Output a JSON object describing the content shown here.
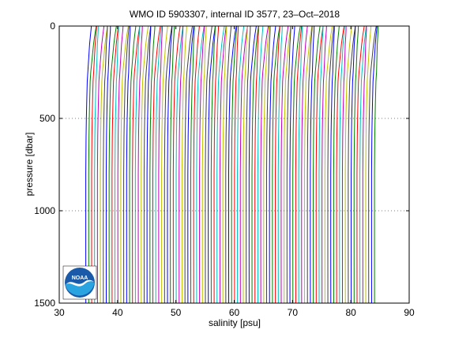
{
  "chart_data": {
    "type": "line",
    "title": "WMO ID 5903307, internal ID 3577, 23–Oct–2018",
    "xlabel": "salinity [psu]",
    "ylabel": "pressure [dbar]",
    "xlim": [
      30,
      90
    ],
    "ylim": [
      1500,
      0
    ],
    "y_inverted": true,
    "xticks": [
      "30",
      "40",
      "50",
      "60",
      "70",
      "80",
      "90"
    ],
    "yticks": [
      "0",
      "500",
      "1000",
      "1500"
    ],
    "ygrid_at": [
      500,
      1000
    ],
    "grid_style": "dotted",
    "profile_offset_step": 0.5,
    "profile_count": 100,
    "first_profile_offset": 0,
    "profile_shape": {
      "pressure": [
        0,
        20,
        50,
        100,
        150,
        200,
        250,
        300,
        400,
        500,
        600,
        800,
        1000,
        1200,
        1500
      ],
      "salinity": [
        35.5,
        35.45,
        35.35,
        35.2,
        35.1,
        35.0,
        34.9,
        34.8,
        34.72,
        34.65,
        34.6,
        34.55,
        34.55,
        34.55,
        34.56
      ]
    },
    "series_colors": [
      "#0000ff",
      "#008000",
      "#ff0000",
      "#00bfbf",
      "#bf00bf",
      "#bfbf00",
      "#404040"
    ]
  },
  "logo": {
    "text": "NOAA",
    "colors": {
      "sky": "#1a5aa8",
      "water": "#29a4e0",
      "bird": "#ffffff"
    }
  }
}
